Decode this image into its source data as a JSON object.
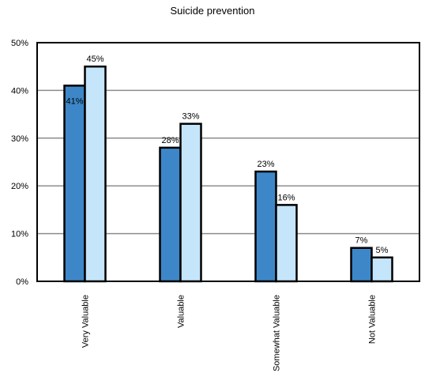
{
  "chart_data": {
    "type": "bar",
    "title": "Suicide prevention",
    "xlabel": "",
    "ylabel": "",
    "ylim": [
      0,
      50
    ],
    "yticks": [
      0,
      10,
      20,
      30,
      40,
      50
    ],
    "ytick_labels": [
      "0%",
      "10%",
      "20%",
      "30%",
      "40%",
      "50%"
    ],
    "grid": true,
    "legend": "none",
    "categories": [
      "Very Valuable",
      "Valuable",
      "Somewhat Valuable",
      "Not Valuable"
    ],
    "series": [
      {
        "values": [
          41,
          28,
          23,
          7
        ],
        "labels": [
          "41%",
          "28%",
          "23%",
          "7%"
        ],
        "color": "#3d87c9"
      },
      {
        "values": [
          45,
          33,
          16,
          5
        ],
        "labels": [
          "45%",
          "33%",
          "16%",
          "5%"
        ],
        "color": "#c5e5fb"
      }
    ]
  }
}
